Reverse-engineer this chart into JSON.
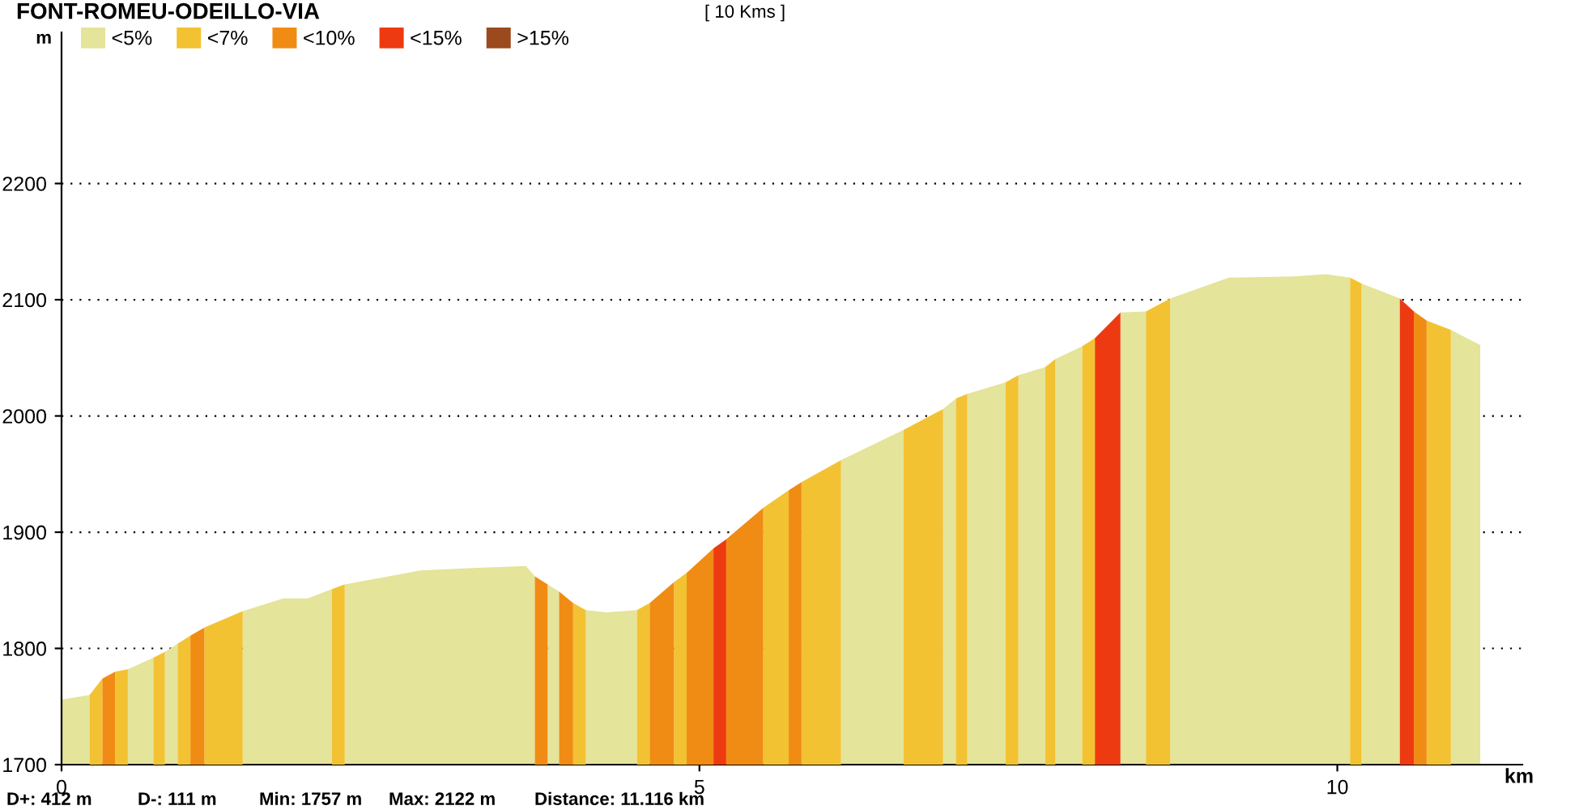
{
  "chart_data": {
    "type": "area",
    "title": "FONT-ROMEU-ODEILLO-VIA",
    "subtitle": "[ 10 Kms ]",
    "xlabel": "km",
    "ylabel": "m",
    "annotations": [
      "D+: 412 m",
      "D-: 111 m",
      "Min: 1757 m",
      "Max: 2122 m",
      "Distance: 11.116 km"
    ],
    "xlim": [
      0,
      11.45
    ],
    "xticks": [
      0,
      5,
      10
    ],
    "ylim": [
      1700,
      2330
    ],
    "yticks": [
      1700,
      1800,
      1900,
      2000,
      2100,
      2200
    ],
    "grid": "y",
    "legend": "top left",
    "series": [
      {
        "name": "<5%",
        "color": "#e4e49a",
        "x": [
          0,
          0.22,
          null,
          0.52,
          0.72,
          null,
          0.81,
          0.91,
          null,
          1.42,
          1.74,
          1.93,
          2.12,
          null,
          2.22,
          2.81,
          3.19,
          3.64,
          3.71,
          null,
          3.81,
          3.9,
          null,
          4.11,
          4.27,
          4.51,
          null,
          6.11,
          6.6,
          null,
          6.91,
          7.01,
          null,
          7.1,
          7.4,
          null,
          7.5,
          7.71,
          null,
          7.79,
          8.0,
          null,
          8.3,
          8.5,
          null,
          8.69,
          9.15,
          9.66,
          9.91,
          10.1,
          null,
          10.19,
          10.49,
          null,
          10.89,
          11.12
        ],
        "values": [
          1756,
          1760,
          null,
          1782,
          1792,
          null,
          1797,
          1804,
          null,
          1832,
          1843,
          1843,
          1851,
          null,
          1855,
          1867,
          1869,
          1871,
          1862,
          null,
          1855,
          1849,
          null,
          1833,
          1831,
          1833,
          null,
          1962,
          1988,
          null,
          2006,
          2015,
          null,
          2019,
          2029,
          null,
          2035,
          2042,
          null,
          2049,
          2060,
          null,
          2089,
          2090,
          null,
          2101,
          2119,
          2120,
          2122,
          2119,
          null,
          2114,
          2101,
          null,
          2074,
          2061
        ]
      },
      {
        "name": "<7%",
        "color": "#f2c233",
        "x": [
          0.22,
          0.32,
          null,
          0.42,
          0.52,
          null,
          0.72,
          0.81,
          null,
          0.91,
          1.01,
          null,
          1.12,
          1.42,
          null,
          2.12,
          2.22,
          null,
          4.01,
          4.11,
          null,
          4.51,
          4.61,
          null,
          4.8,
          4.9,
          null,
          5.5,
          5.7,
          null,
          5.8,
          6.11,
          null,
          6.6,
          6.91,
          null,
          7.01,
          7.1,
          null,
          7.4,
          7.5,
          null,
          7.71,
          7.79,
          null,
          8.0,
          8.1,
          null,
          8.5,
          8.69,
          null,
          10.1,
          10.19,
          null,
          10.7,
          10.89
        ],
        "values": [
          1760,
          1774,
          null,
          1780,
          1782,
          null,
          1792,
          1797,
          null,
          1804,
          1811,
          null,
          1818,
          1832,
          null,
          1851,
          1855,
          null,
          1839,
          1833,
          null,
          1833,
          1839,
          null,
          1857,
          1865,
          null,
          1921,
          1936,
          null,
          1943,
          1962,
          null,
          1988,
          2006,
          null,
          2015,
          2019,
          null,
          2029,
          2035,
          null,
          2042,
          2049,
          null,
          2060,
          2067,
          null,
          2090,
          2101,
          null,
          2119,
          2114,
          null,
          2082,
          2074
        ]
      },
      {
        "name": "<10%",
        "color": "#f08c14",
        "x": [
          0.32,
          0.42,
          null,
          1.01,
          1.12,
          null,
          3.71,
          3.81,
          null,
          3.9,
          4.01,
          null,
          4.61,
          4.8,
          null,
          4.9,
          5.11,
          null,
          5.21,
          5.5,
          null,
          5.7,
          5.8,
          null,
          10.6,
          10.7
        ],
        "values": [
          1774,
          1780,
          null,
          1811,
          1818,
          null,
          1862,
          1855,
          null,
          1849,
          1839,
          null,
          1839,
          1857,
          null,
          1865,
          1886,
          null,
          1894,
          1921,
          null,
          1936,
          1943,
          null,
          2090,
          2082
        ]
      },
      {
        "name": "<15%",
        "color": "#ee3a10",
        "x": [
          5.11,
          5.21,
          null,
          8.1,
          8.3,
          null,
          10.49,
          10.6
        ],
        "values": [
          1886,
          1894,
          null,
          2067,
          2089,
          null,
          2101,
          2090
        ]
      },
      {
        "name": ">15%",
        "color": "#9a4a1c"
      }
    ]
  }
}
